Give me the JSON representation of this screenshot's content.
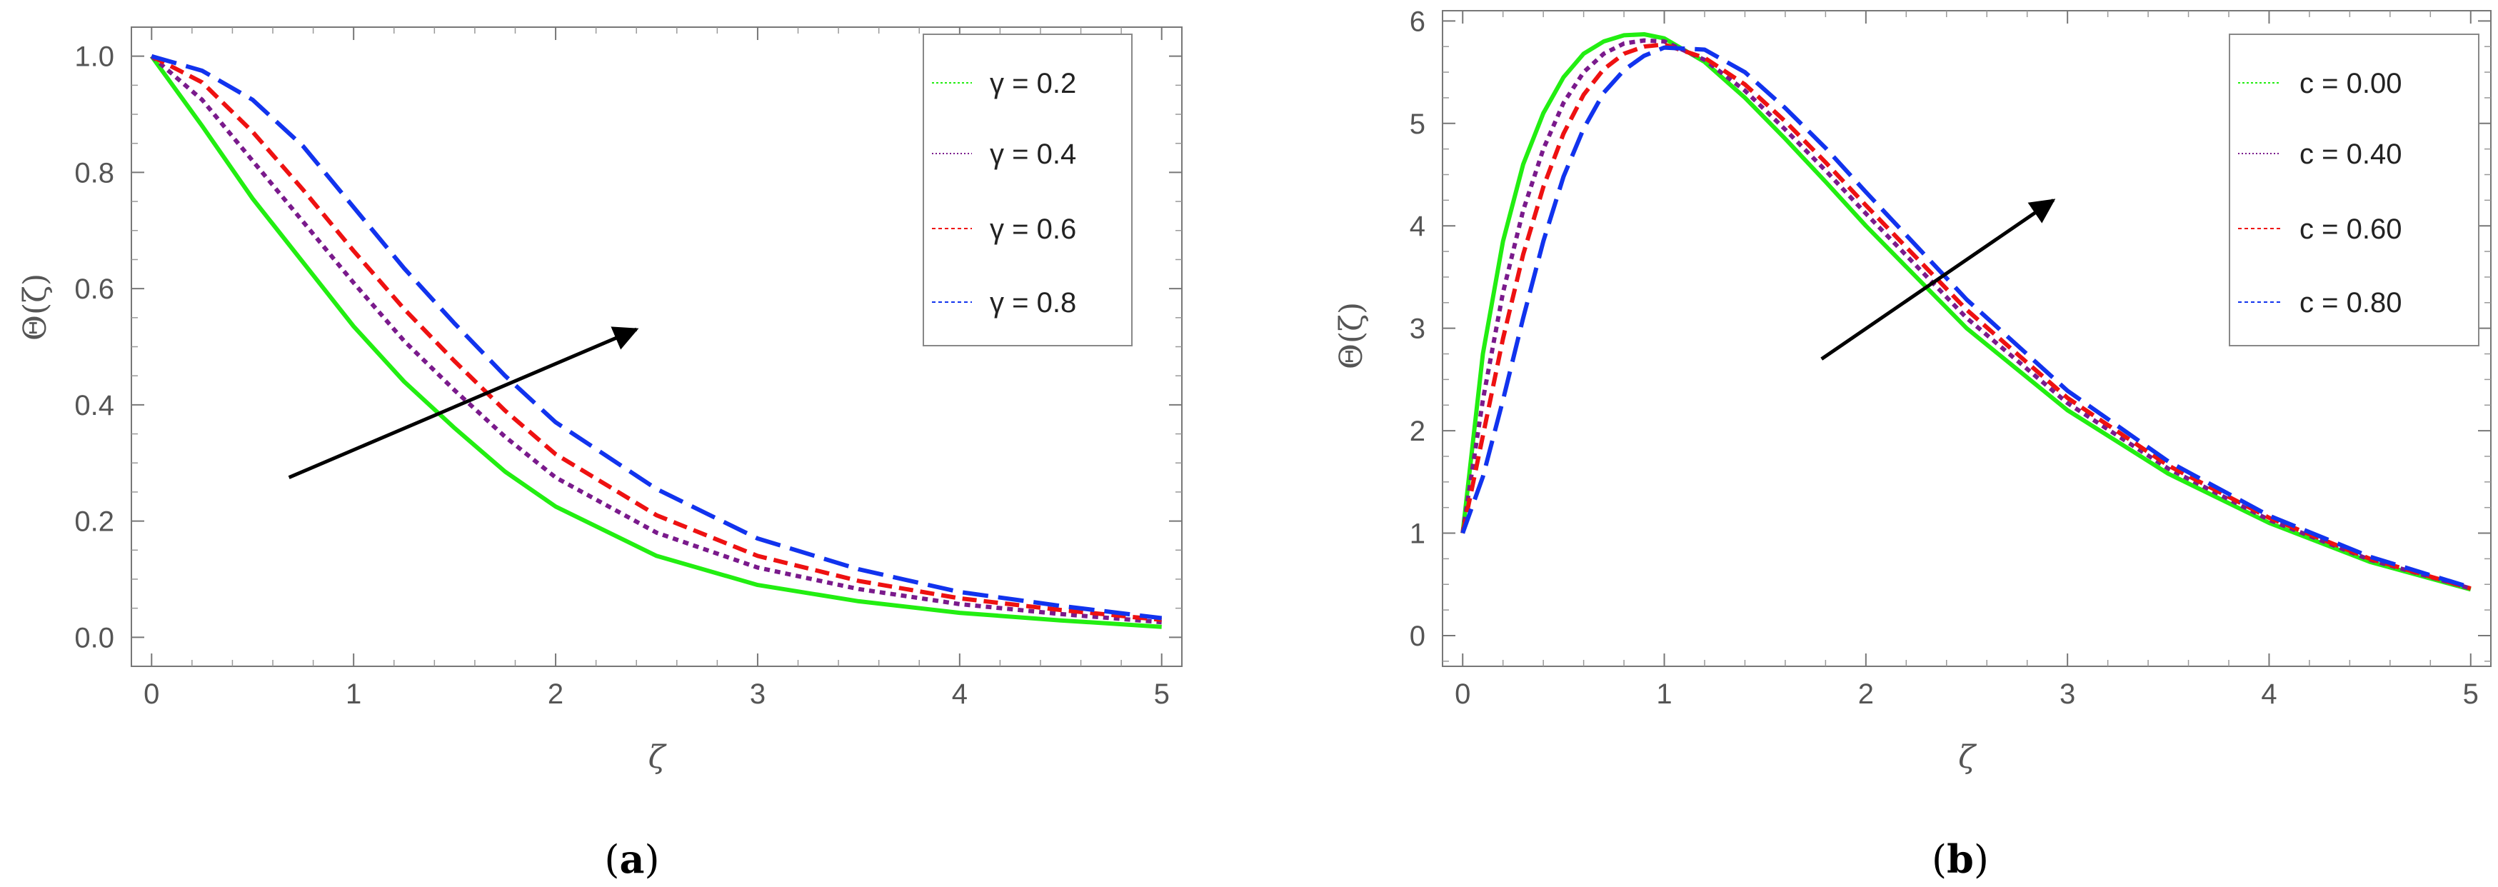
{
  "chart_data": [
    {
      "panel": "a",
      "panel_label": "(a)",
      "panel_label_parts": [
        "(",
        "a",
        ")"
      ],
      "type": "line",
      "xlabel": "ζ",
      "ylabel": "Θ(ζ)",
      "xlim": [
        -0.1,
        5.1
      ],
      "ylim": [
        -0.05,
        1.05
      ],
      "xticks": [
        "0",
        "1",
        "2",
        "3",
        "4",
        "5"
      ],
      "yticks": [
        "0.0",
        "0.2",
        "0.4",
        "0.6",
        "0.8",
        "1.0"
      ],
      "legend_position": "top-right",
      "arrow": {
        "from": [
          0.68,
          0.275
        ],
        "to": [
          2.4,
          0.53
        ]
      },
      "series": [
        {
          "name": "γ = 0.2",
          "color": "#22ee11",
          "dash": "solid",
          "x": [
            0,
            0.25,
            0.5,
            0.75,
            1.0,
            1.25,
            1.5,
            1.75,
            2.0,
            2.5,
            3.0,
            3.5,
            4.0,
            4.5,
            5.0
          ],
          "y": [
            1.0,
            0.88,
            0.755,
            0.645,
            0.535,
            0.44,
            0.36,
            0.285,
            0.225,
            0.14,
            0.09,
            0.062,
            0.042,
            0.029,
            0.018
          ]
        },
        {
          "name": "γ = 0.4",
          "color": "#7a1a8c",
          "dash": "short",
          "x": [
            0,
            0.25,
            0.5,
            0.75,
            1.0,
            1.25,
            1.5,
            1.75,
            2.0,
            2.5,
            3.0,
            3.5,
            4.0,
            4.5,
            5.0
          ],
          "y": [
            1.0,
            0.925,
            0.82,
            0.715,
            0.61,
            0.51,
            0.425,
            0.345,
            0.275,
            0.18,
            0.12,
            0.083,
            0.057,
            0.04,
            0.026
          ]
        },
        {
          "name": "γ = 0.6",
          "color": "#ee1111",
          "dash": "medium",
          "x": [
            0,
            0.25,
            0.5,
            0.75,
            1.0,
            1.25,
            1.5,
            1.75,
            2.0,
            2.5,
            3.0,
            3.5,
            4.0,
            4.5,
            5.0
          ],
          "y": [
            1.0,
            0.955,
            0.87,
            0.77,
            0.665,
            0.565,
            0.475,
            0.39,
            0.315,
            0.21,
            0.14,
            0.097,
            0.067,
            0.047,
            0.03
          ]
        },
        {
          "name": "γ = 0.8",
          "color": "#1133ee",
          "dash": "long",
          "x": [
            0,
            0.25,
            0.5,
            0.75,
            1.0,
            1.25,
            1.5,
            1.75,
            2.0,
            2.5,
            3.0,
            3.5,
            4.0,
            4.5,
            5.0
          ],
          "y": [
            1.0,
            0.975,
            0.925,
            0.845,
            0.74,
            0.635,
            0.54,
            0.45,
            0.37,
            0.255,
            0.17,
            0.117,
            0.078,
            0.054,
            0.033
          ]
        }
      ]
    },
    {
      "panel": "b",
      "panel_label": "(b)",
      "panel_label_parts": [
        "(",
        "b",
        ")"
      ],
      "type": "line",
      "xlabel": "ζ",
      "ylabel": "Θ(ζ)",
      "xlim": [
        -0.1,
        5.1
      ],
      "ylim": [
        -0.3,
        6.1
      ],
      "xticks": [
        "0",
        "1",
        "2",
        "3",
        "4",
        "5"
      ],
      "yticks": [
        "0",
        "1",
        "2",
        "3",
        "4",
        "5",
        "6"
      ],
      "legend_position": "top-right",
      "arrow": {
        "from": [
          1.78,
          2.7
        ],
        "to": [
          2.93,
          4.25
        ]
      },
      "series": [
        {
          "name": "c = 0.00",
          "color": "#22ee11",
          "dash": "solid",
          "x": [
            0,
            0.1,
            0.2,
            0.3,
            0.4,
            0.5,
            0.6,
            0.7,
            0.8,
            0.9,
            1.0,
            1.2,
            1.4,
            1.6,
            1.8,
            2.0,
            2.5,
            3.0,
            3.5,
            4.0,
            4.5,
            5.0
          ],
          "y": [
            1.0,
            2.75,
            3.85,
            4.6,
            5.1,
            5.45,
            5.68,
            5.8,
            5.86,
            5.87,
            5.83,
            5.6,
            5.25,
            4.85,
            4.43,
            4.0,
            3.0,
            2.2,
            1.58,
            1.1,
            0.72,
            0.45
          ]
        },
        {
          "name": "c = 0.40",
          "color": "#7a1a8c",
          "dash": "short",
          "x": [
            0,
            0.1,
            0.2,
            0.3,
            0.4,
            0.5,
            0.6,
            0.7,
            0.8,
            0.9,
            1.0,
            1.2,
            1.4,
            1.6,
            1.8,
            2.0,
            2.5,
            3.0,
            3.5,
            4.0,
            4.5,
            5.0
          ],
          "y": [
            1.0,
            2.3,
            3.35,
            4.15,
            4.75,
            5.2,
            5.5,
            5.68,
            5.78,
            5.81,
            5.8,
            5.62,
            5.32,
            4.94,
            4.54,
            4.12,
            3.1,
            2.27,
            1.63,
            1.13,
            0.74,
            0.46
          ]
        },
        {
          "name": "c = 0.60",
          "color": "#ee1111",
          "dash": "medium",
          "x": [
            0,
            0.1,
            0.2,
            0.3,
            0.4,
            0.5,
            0.6,
            0.7,
            0.8,
            0.9,
            1.0,
            1.2,
            1.4,
            1.6,
            1.8,
            2.0,
            2.5,
            3.0,
            3.5,
            4.0,
            4.5,
            5.0
          ],
          "y": [
            1.0,
            1.95,
            2.9,
            3.72,
            4.38,
            4.9,
            5.28,
            5.53,
            5.68,
            5.75,
            5.77,
            5.64,
            5.38,
            5.02,
            4.62,
            4.2,
            3.18,
            2.32,
            1.66,
            1.15,
            0.75,
            0.46
          ]
        },
        {
          "name": "c = 0.80",
          "color": "#1133ee",
          "dash": "long",
          "x": [
            0,
            0.1,
            0.2,
            0.3,
            0.4,
            0.5,
            0.6,
            0.7,
            0.8,
            0.9,
            1.0,
            1.2,
            1.4,
            1.6,
            1.8,
            2.0,
            2.5,
            3.0,
            3.5,
            4.0,
            4.5,
            5.0
          ],
          "y": [
            1.0,
            1.55,
            2.3,
            3.1,
            3.85,
            4.48,
            4.95,
            5.3,
            5.52,
            5.66,
            5.74,
            5.72,
            5.5,
            5.15,
            4.76,
            4.33,
            3.28,
            2.39,
            1.7,
            1.17,
            0.77,
            0.47
          ]
        }
      ]
    }
  ]
}
